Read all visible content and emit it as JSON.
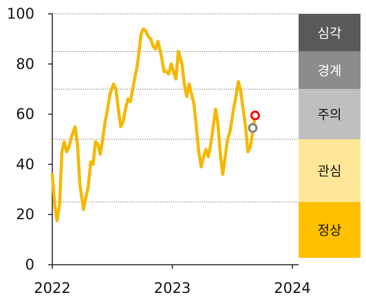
{
  "chart_data": {
    "type": "line",
    "title": "",
    "xlabel": "",
    "ylabel": "",
    "ylim": [
      0,
      100
    ],
    "xlim": [
      2022.0,
      2024.1
    ],
    "y_ticks": [
      "0",
      "20",
      "40",
      "60",
      "80",
      "100"
    ],
    "x_ticks": [
      "2022",
      "2023",
      "2024"
    ],
    "threshold_lines": [
      25,
      50,
      70,
      85,
      100
    ],
    "bands": [
      {
        "label": "심각",
        "from": 85,
        "to": 100,
        "color": "#595959",
        "text_color": "#ffffff"
      },
      {
        "label": "경계",
        "from": 70,
        "to": 85,
        "color": "#8c8c8c",
        "text_color": "#ffffff"
      },
      {
        "label": "주의",
        "from": 50,
        "to": 70,
        "color": "#bfbfbf",
        "text_color": "#111111"
      },
      {
        "label": "관심",
        "from": 25,
        "to": 50,
        "color": "#ffe699",
        "text_color": "#111111"
      },
      {
        "label": "정상",
        "from": 0,
        "to": 25,
        "color": "#ffc000",
        "text_color": "#111111"
      }
    ],
    "series": [
      {
        "color": "#f5b800",
        "points": [
          [
            2022.0,
            36
          ],
          [
            2022.02,
            24
          ],
          [
            2022.04,
            17.5
          ],
          [
            2022.06,
            24
          ],
          [
            2022.08,
            45
          ],
          [
            2022.1,
            49
          ],
          [
            2022.12,
            45
          ],
          [
            2022.14,
            47
          ],
          [
            2022.16,
            51
          ],
          [
            2022.19,
            55
          ],
          [
            2022.21,
            48
          ],
          [
            2022.23,
            32
          ],
          [
            2022.26,
            22
          ],
          [
            2022.28,
            27
          ],
          [
            2022.3,
            31
          ],
          [
            2022.32,
            41
          ],
          [
            2022.34,
            40
          ],
          [
            2022.36,
            49
          ],
          [
            2022.38,
            48
          ],
          [
            2022.4,
            44
          ],
          [
            2022.42,
            50
          ],
          [
            2022.44,
            57
          ],
          [
            2022.46,
            62
          ],
          [
            2022.48,
            68
          ],
          [
            2022.51,
            72
          ],
          [
            2022.53,
            70
          ],
          [
            2022.55,
            62
          ],
          [
            2022.57,
            55
          ],
          [
            2022.59,
            57
          ],
          [
            2022.61,
            62
          ],
          [
            2022.63,
            66
          ],
          [
            2022.65,
            65
          ],
          [
            2022.67,
            70
          ],
          [
            2022.69,
            75
          ],
          [
            2022.71,
            80
          ],
          [
            2022.74,
            92
          ],
          [
            2022.76,
            94
          ],
          [
            2022.78,
            93
          ],
          [
            2022.8,
            91
          ],
          [
            2022.82,
            90
          ],
          [
            2022.84,
            87
          ],
          [
            2022.86,
            86
          ],
          [
            2022.88,
            89
          ],
          [
            2022.91,
            83
          ],
          [
            2022.93,
            77
          ],
          [
            2022.95,
            77
          ],
          [
            2022.97,
            76
          ],
          [
            2022.99,
            80
          ],
          [
            2023.01,
            77
          ],
          [
            2023.03,
            74
          ],
          [
            2023.05,
            85
          ],
          [
            2023.08,
            80
          ],
          [
            2023.1,
            72
          ],
          [
            2023.12,
            67
          ],
          [
            2023.14,
            72
          ],
          [
            2023.16,
            68
          ],
          [
            2023.18,
            64
          ],
          [
            2023.2,
            55
          ],
          [
            2023.22,
            45
          ],
          [
            2023.24,
            39
          ],
          [
            2023.26,
            43
          ],
          [
            2023.28,
            46
          ],
          [
            2023.3,
            43
          ],
          [
            2023.32,
            48
          ],
          [
            2023.34,
            55
          ],
          [
            2023.36,
            62
          ],
          [
            2023.38,
            56
          ],
          [
            2023.4,
            44
          ],
          [
            2023.42,
            36
          ],
          [
            2023.44,
            43
          ],
          [
            2023.46,
            50
          ],
          [
            2023.48,
            53
          ],
          [
            2023.51,
            62
          ],
          [
            2023.53,
            67
          ],
          [
            2023.55,
            73
          ],
          [
            2023.57,
            69
          ],
          [
            2023.59,
            62
          ],
          [
            2023.61,
            55
          ],
          [
            2023.63,
            45
          ],
          [
            2023.65,
            47
          ],
          [
            2023.67,
            53
          ],
          [
            2023.69,
            59
          ]
        ]
      }
    ],
    "markers": [
      {
        "x": 2023.67,
        "y": 54.5,
        "color": "#7f7f7f"
      },
      {
        "x": 2023.69,
        "y": 59.5,
        "color": "#ff0000"
      }
    ]
  }
}
